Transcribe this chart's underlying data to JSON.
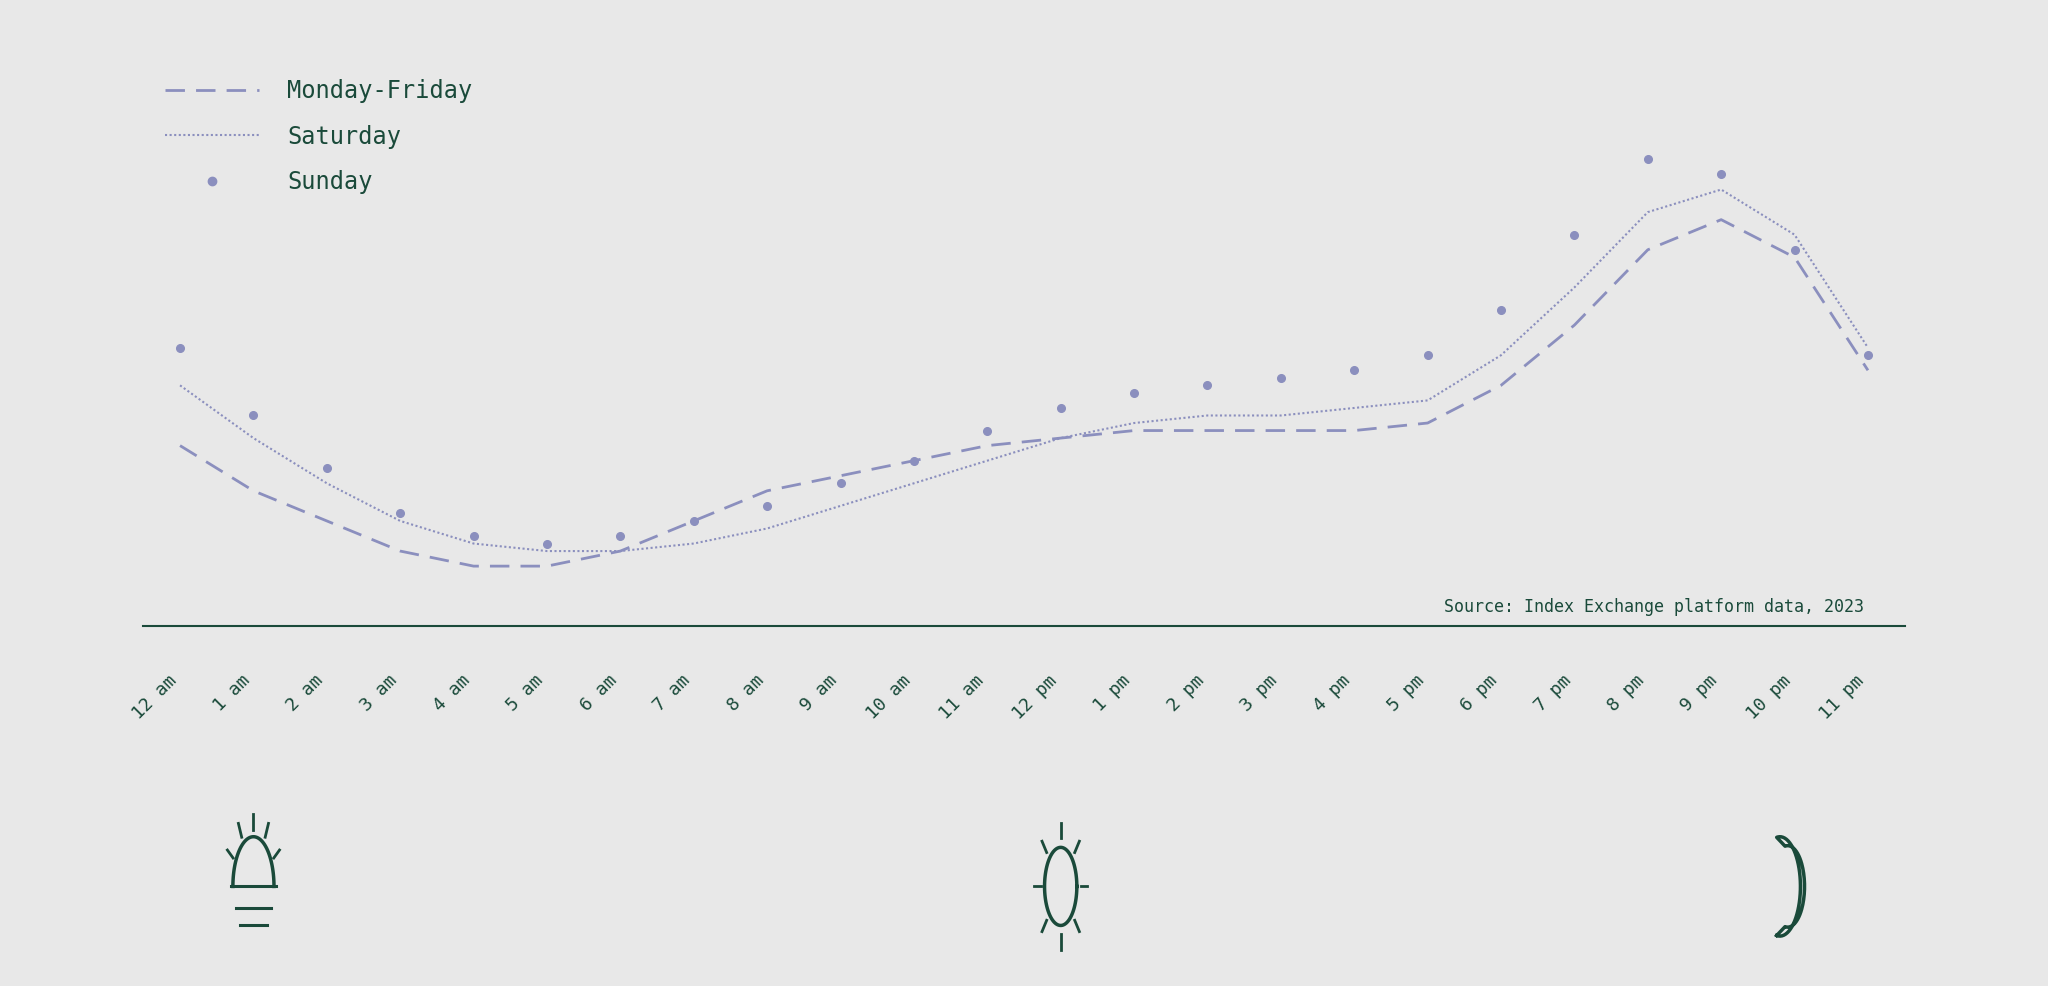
{
  "background_color": "#e8e8e8",
  "line_color": "#8b8fbe",
  "text_color": "#1a4a3a",
  "source_text": "Source: Index Exchange platform data, 2023",
  "legend_labels": [
    "Monday-Friday",
    "Saturday",
    "Sunday"
  ],
  "x_labels": [
    "12 am",
    "1 am",
    "2 am",
    "3 am",
    "4 am",
    "5 am",
    "6 am",
    "7 am",
    "8 am",
    "9 am",
    "10 am",
    "11 am",
    "12 pm",
    "1 pm",
    "2 pm",
    "3 pm",
    "4 pm",
    "5 pm",
    "6 pm",
    "7 pm",
    "8 pm",
    "9 pm",
    "10 pm",
    "11 pm"
  ],
  "monday_friday": [
    62,
    56,
    52,
    48,
    46,
    46,
    48,
    52,
    56,
    58,
    60,
    62,
    63,
    64,
    64,
    64,
    64,
    65,
    70,
    78,
    88,
    92,
    87,
    72
  ],
  "saturday": [
    70,
    63,
    57,
    52,
    49,
    48,
    48,
    49,
    51,
    54,
    57,
    60,
    63,
    65,
    66,
    66,
    67,
    68,
    74,
    83,
    93,
    96,
    90,
    75
  ],
  "sunday": [
    75,
    66,
    59,
    53,
    50,
    49,
    50,
    52,
    54,
    57,
    60,
    64,
    67,
    69,
    70,
    71,
    72,
    74,
    80,
    90,
    100,
    98,
    88,
    74
  ]
}
